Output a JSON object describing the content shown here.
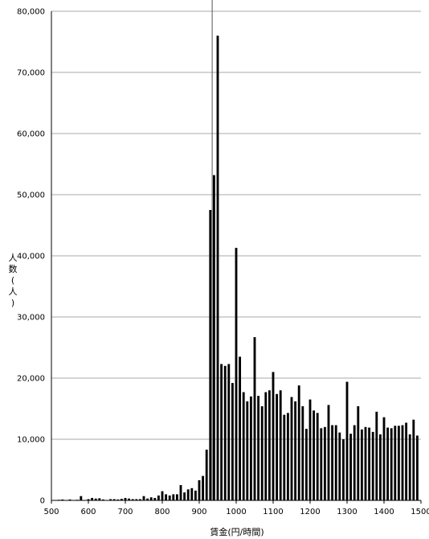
{
  "chart_data": {
    "type": "bar",
    "xlabel": "賃金(円/時間)",
    "ylabel": "人数(人)",
    "xlim": [
      500,
      1500
    ],
    "ylim": [
      0,
      80000
    ],
    "x_ticks": [
      "500",
      "600",
      "700",
      "800",
      "900",
      "1000",
      "1100",
      "1200",
      "1300",
      "1400",
      "1500"
    ],
    "y_ticks": [
      "0",
      "10,000",
      "20,000",
      "30,000",
      "40,000",
      "50,000",
      "60,000",
      "70,000",
      "80,000"
    ],
    "grid": true,
    "reference_line_x": 935,
    "bar_color": "#000000",
    "bin_width": 10,
    "x": [
      520,
      530,
      540,
      550,
      560,
      570,
      580,
      590,
      600,
      610,
      620,
      630,
      640,
      650,
      660,
      670,
      680,
      690,
      700,
      710,
      720,
      730,
      740,
      750,
      760,
      770,
      780,
      790,
      800,
      810,
      820,
      830,
      840,
      850,
      860,
      870,
      880,
      890,
      900,
      910,
      920,
      930,
      940,
      950,
      960,
      970,
      980,
      990,
      1000,
      1010,
      1020,
      1030,
      1040,
      1050,
      1060,
      1070,
      1080,
      1090,
      1100,
      1110,
      1120,
      1130,
      1140,
      1150,
      1160,
      1170,
      1180,
      1190,
      1200,
      1210,
      1220,
      1230,
      1240,
      1250,
      1260,
      1270,
      1280,
      1290,
      1300,
      1310,
      1320,
      1330,
      1340,
      1350,
      1360,
      1370,
      1380,
      1390,
      1400,
      1410,
      1420,
      1430,
      1440,
      1450,
      1460,
      1470,
      1480,
      1490
    ],
    "values": [
      100,
      150,
      50,
      150,
      50,
      100,
      700,
      50,
      200,
      400,
      300,
      350,
      150,
      50,
      200,
      200,
      150,
      250,
      400,
      300,
      200,
      200,
      200,
      700,
      300,
      500,
      400,
      800,
      1500,
      1000,
      800,
      1000,
      1000,
      2500,
      1300,
      1800,
      2000,
      1600,
      3300,
      4000,
      8300,
      47500,
      53200,
      76000,
      22300,
      22000,
      22300,
      19200,
      41300,
      23500,
      17700,
      16200,
      17000,
      26700,
      17100,
      15400,
      17700,
      18000,
      21000,
      17400,
      18000,
      14000,
      14300,
      16900,
      16200,
      18800,
      15400,
      11700,
      16500,
      14700,
      14300,
      11800,
      12000,
      15600,
      12300,
      12300,
      11100,
      10000,
      19400,
      10900,
      12300,
      15400,
      11600,
      12000,
      11900,
      11200,
      14500,
      10800,
      13600,
      11900,
      11800,
      12200,
      12200,
      12300,
      12700,
      10800,
      13200,
      10600
    ]
  }
}
